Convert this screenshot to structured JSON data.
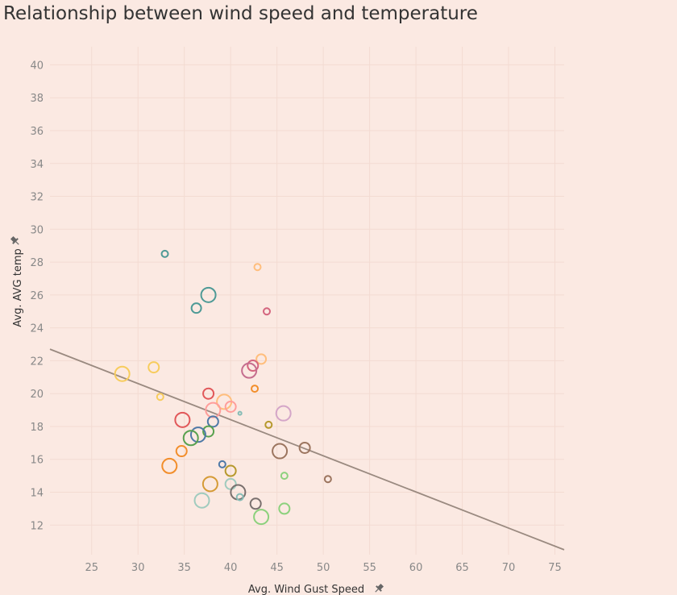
{
  "chart_data": {
    "type": "scatter",
    "title": "Relationship between wind speed and temperature",
    "xlabel": "Avg. Wind Gust Speed",
    "ylabel": "Avg. AVG temp",
    "xlim": [
      20.5,
      76
    ],
    "ylim": [
      10.2,
      41.1
    ],
    "x_ticks": [
      25,
      30,
      35,
      40,
      45,
      50,
      55,
      60,
      65,
      70,
      75
    ],
    "y_ticks": [
      12,
      14,
      16,
      18,
      20,
      22,
      24,
      26,
      28,
      30,
      32,
      34,
      36,
      38,
      40
    ],
    "grid": true,
    "trend_line": {
      "color": "#9a8a80",
      "points": [
        [
          20.5,
          22.7
        ],
        [
          76,
          10.5
        ]
      ]
    },
    "points": [
      {
        "x": 32.9,
        "y": 28.5,
        "size": 8,
        "color": "#4e9a96"
      },
      {
        "x": 42.9,
        "y": 27.7,
        "size": 8,
        "color": "#ffbe7d"
      },
      {
        "x": 37.6,
        "y": 26.0,
        "size": 18,
        "color": "#4e9a96"
      },
      {
        "x": 36.3,
        "y": 25.2,
        "size": 12,
        "color": "#4e9a96"
      },
      {
        "x": 43.9,
        "y": 25.0,
        "size": 8,
        "color": "#d4657e"
      },
      {
        "x": 43.3,
        "y": 22.1,
        "size": 12,
        "color": "#ffbe7d"
      },
      {
        "x": 42.4,
        "y": 21.7,
        "size": 13,
        "color": "#d4657e"
      },
      {
        "x": 42.0,
        "y": 21.4,
        "size": 18,
        "color": "#c56d8e"
      },
      {
        "x": 31.7,
        "y": 21.6,
        "size": 13,
        "color": "#f7cc5d"
      },
      {
        "x": 28.3,
        "y": 21.2,
        "size": 18,
        "color": "#f7cc5d"
      },
      {
        "x": 42.6,
        "y": 20.3,
        "size": 8,
        "color": "#f28e2b"
      },
      {
        "x": 37.6,
        "y": 20.0,
        "size": 13,
        "color": "#e15759"
      },
      {
        "x": 32.4,
        "y": 19.8,
        "size": 8,
        "color": "#f7cc5d"
      },
      {
        "x": 39.3,
        "y": 19.5,
        "size": 18,
        "color": "#ffbe7d"
      },
      {
        "x": 38.1,
        "y": 19.0,
        "size": 18,
        "color": "#ff9d9a"
      },
      {
        "x": 40.0,
        "y": 19.2,
        "size": 13,
        "color": "#ff9d9a"
      },
      {
        "x": 41.0,
        "y": 18.8,
        "size": 4,
        "color": "#86bcb6"
      },
      {
        "x": 45.7,
        "y": 18.8,
        "size": 18,
        "color": "#d4a6c8"
      },
      {
        "x": 34.8,
        "y": 18.4,
        "size": 18,
        "color": "#e15759"
      },
      {
        "x": 38.1,
        "y": 18.3,
        "size": 13,
        "color": "#4e79a7"
      },
      {
        "x": 44.1,
        "y": 18.1,
        "size": 8,
        "color": "#b6992d"
      },
      {
        "x": 37.6,
        "y": 17.7,
        "size": 13,
        "color": "#59a14f"
      },
      {
        "x": 36.5,
        "y": 17.5,
        "size": 18,
        "color": "#4e79a7"
      },
      {
        "x": 35.7,
        "y": 17.3,
        "size": 18,
        "color": "#59a14f"
      },
      {
        "x": 48.0,
        "y": 16.7,
        "size": 13,
        "color": "#9c755f"
      },
      {
        "x": 45.3,
        "y": 16.5,
        "size": 18,
        "color": "#9c755f"
      },
      {
        "x": 34.7,
        "y": 16.5,
        "size": 13,
        "color": "#f28e2b"
      },
      {
        "x": 39.1,
        "y": 15.7,
        "size": 8,
        "color": "#4e79a7"
      },
      {
        "x": 33.4,
        "y": 15.6,
        "size": 18,
        "color": "#f28e2b"
      },
      {
        "x": 40.0,
        "y": 15.3,
        "size": 13,
        "color": "#b6992d"
      },
      {
        "x": 45.8,
        "y": 15.0,
        "size": 8,
        "color": "#8cd17d"
      },
      {
        "x": 50.5,
        "y": 14.8,
        "size": 8,
        "color": "#9c755f"
      },
      {
        "x": 37.8,
        "y": 14.5,
        "size": 18,
        "color": "#d59b36"
      },
      {
        "x": 40.0,
        "y": 14.5,
        "size": 13,
        "color": "#a0cbbe"
      },
      {
        "x": 40.8,
        "y": 14.0,
        "size": 18,
        "color": "#79706e"
      },
      {
        "x": 41.0,
        "y": 13.7,
        "size": 8,
        "color": "#86bcb6"
      },
      {
        "x": 36.9,
        "y": 13.5,
        "size": 18,
        "color": "#a0cbbe"
      },
      {
        "x": 42.7,
        "y": 13.3,
        "size": 13,
        "color": "#79706e"
      },
      {
        "x": 45.8,
        "y": 13.0,
        "size": 13,
        "color": "#8cd17d"
      },
      {
        "x": 43.3,
        "y": 12.5,
        "size": 18,
        "color": "#8cd17d"
      }
    ]
  }
}
